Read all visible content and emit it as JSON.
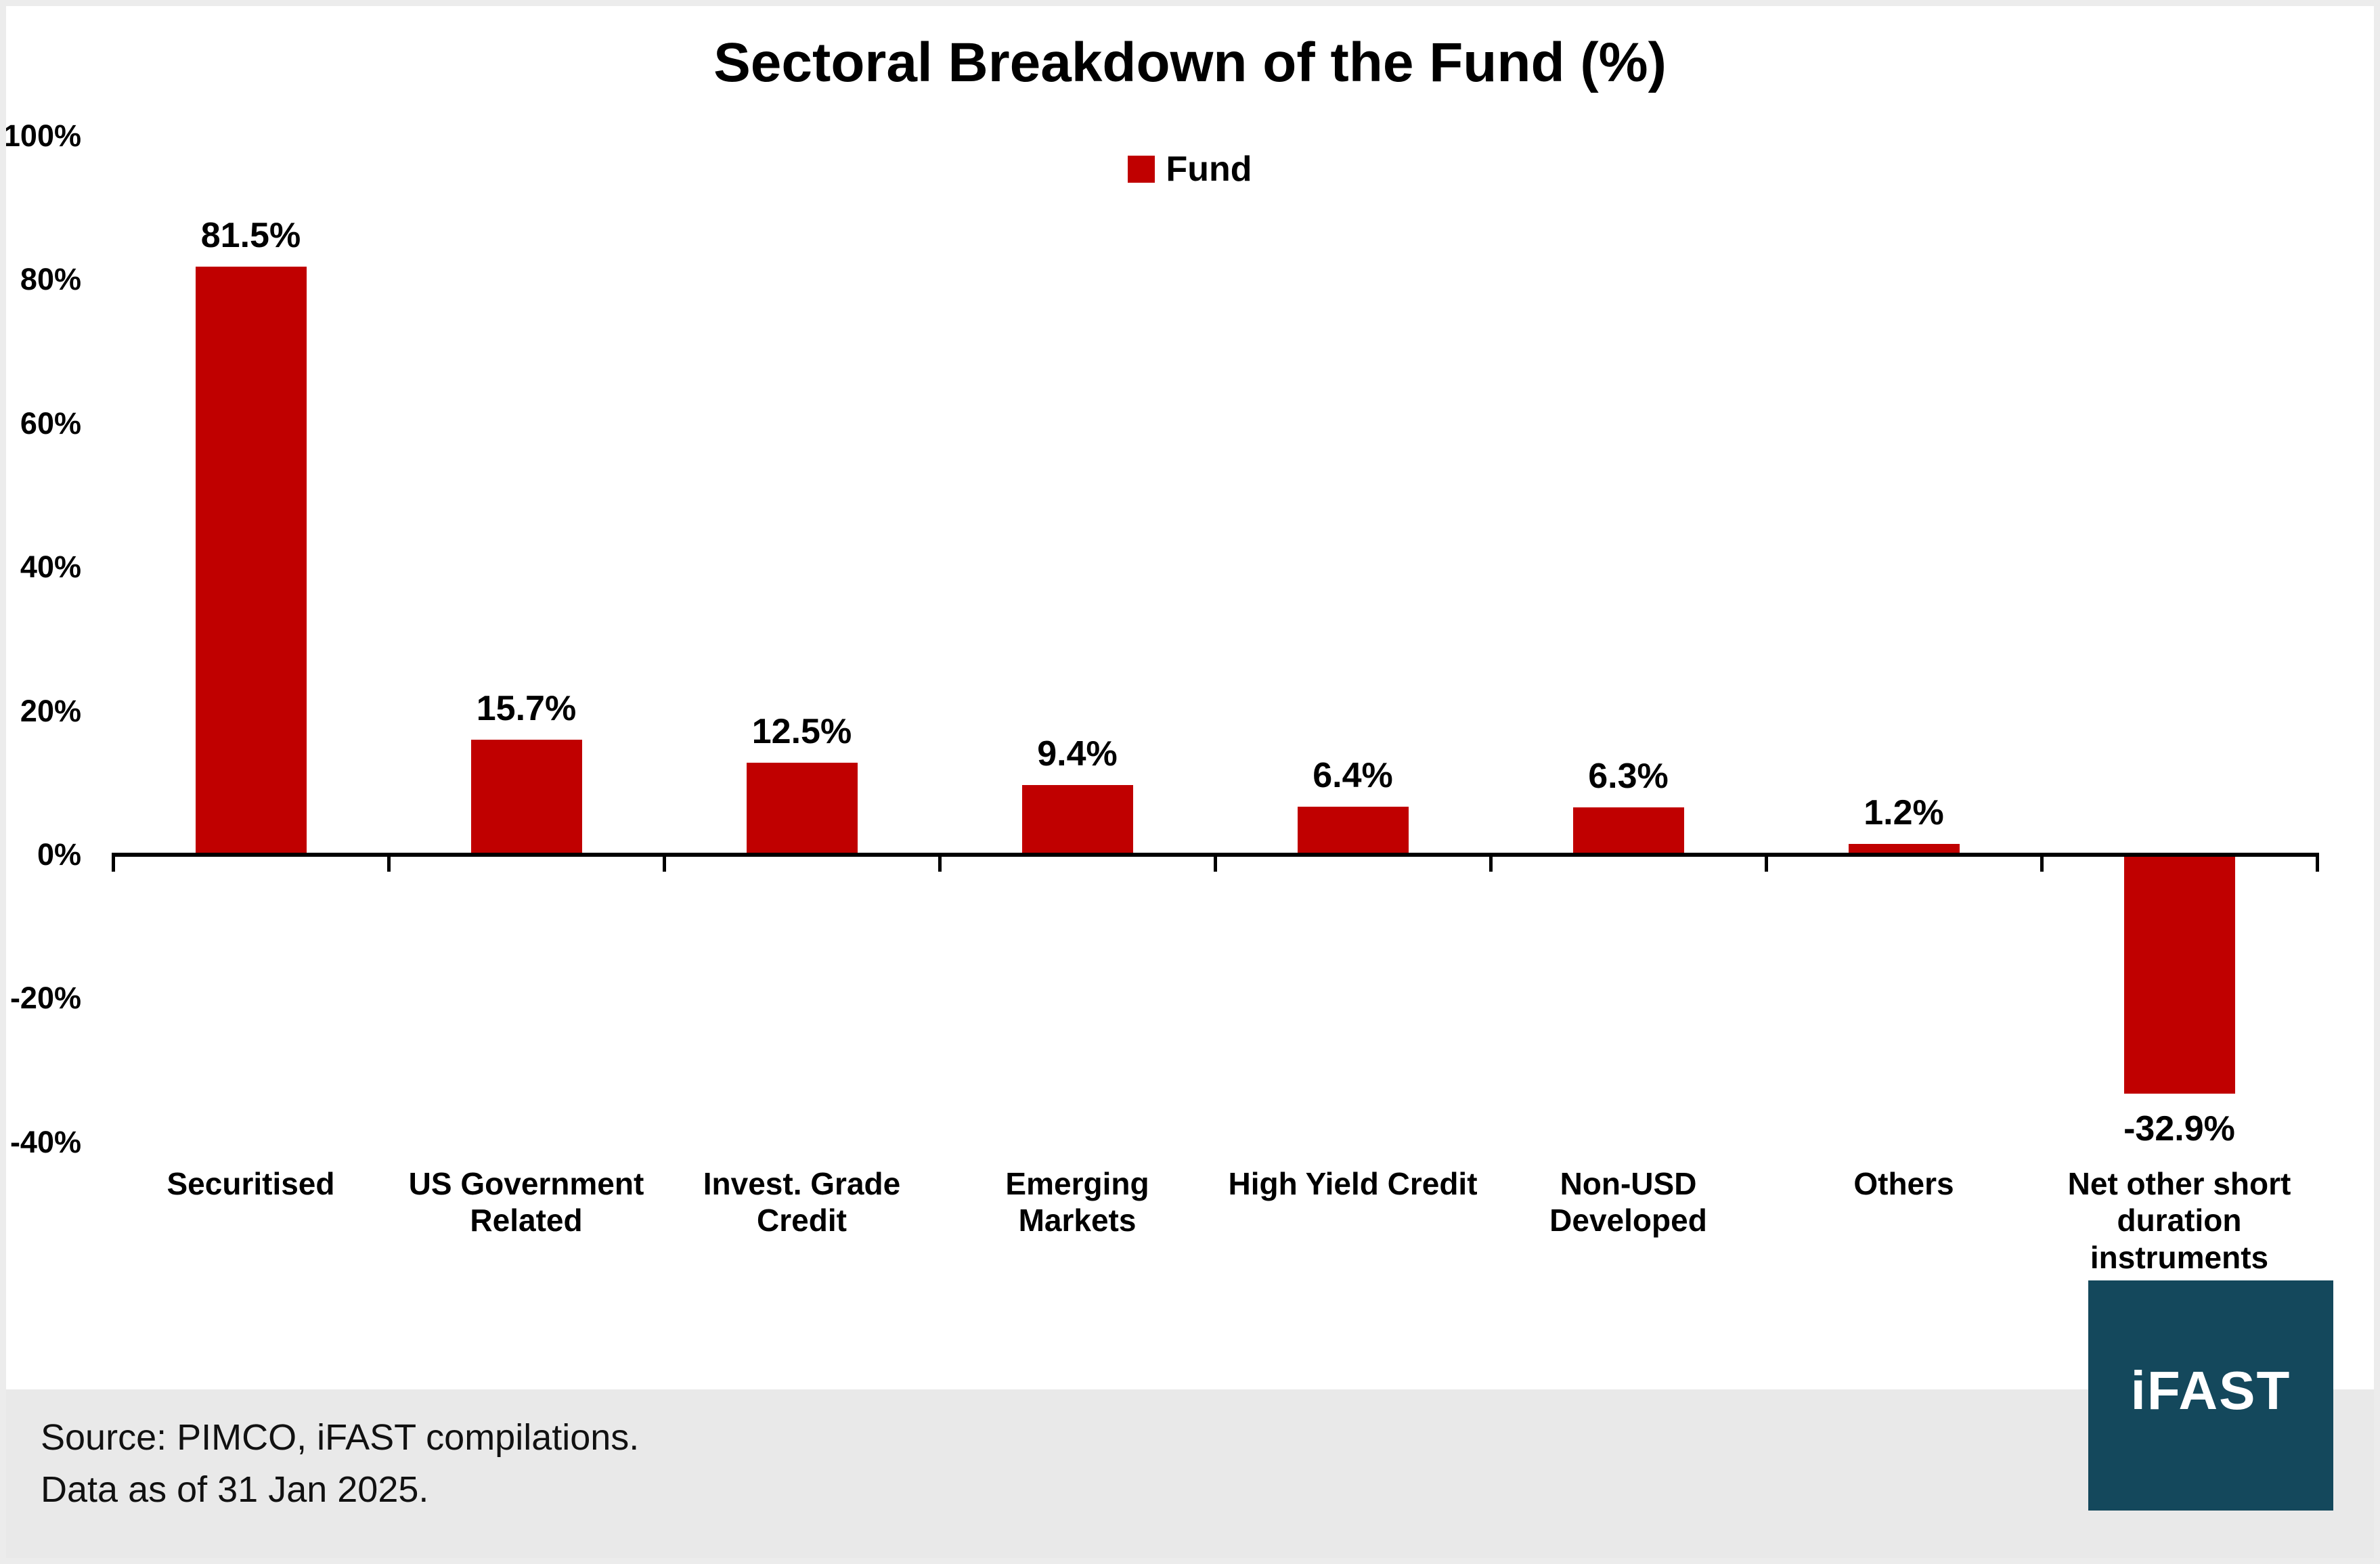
{
  "title": "Sectoral Breakdown of the Fund (%)",
  "legend": {
    "label": "Fund",
    "color": "#C00000"
  },
  "chart_data": {
    "type": "bar",
    "title": "Sectoral Breakdown of the Fund (%)",
    "series_name": "Fund",
    "categories": [
      "Securitised",
      "US Government Related",
      "Invest. Grade Credit",
      "Emerging Markets",
      "High Yield Credit",
      "Non-USD Developed",
      "Others",
      "Net other short duration instruments"
    ],
    "categories_display": [
      "Securitised",
      "US Government\nRelated",
      "Invest. Grade\nCredit",
      "Emerging\nMarkets",
      "High Yield Credit",
      "Non-USD\nDeveloped",
      "Others",
      "Net other short\nduration\ninstruments"
    ],
    "values": [
      81.5,
      15.7,
      12.5,
      9.4,
      6.4,
      6.3,
      1.2,
      -32.9
    ],
    "value_labels": [
      "81.5%",
      "15.7%",
      "12.5%",
      "9.4%",
      "6.4%",
      "6.3%",
      "1.2%",
      "-32.9%"
    ],
    "bar_color": "#C00000",
    "ylim": [
      -40,
      100
    ],
    "y_ticks": [
      100,
      80,
      60,
      40,
      20,
      0,
      -20,
      -40
    ],
    "y_tick_labels": [
      "100%",
      "80%",
      "60%",
      "40%",
      "20%",
      "0%",
      "-20%",
      "-40%"
    ],
    "grid": false,
    "legend_position": "top-center",
    "xlabel": "",
    "ylabel": ""
  },
  "footer": {
    "source_line1": "Source: PIMCO, iFAST compilations.",
    "source_line2": "Data as of 31 Jan 2025."
  },
  "logo": {
    "text": "iFAST",
    "bg_color": "#14485C"
  }
}
